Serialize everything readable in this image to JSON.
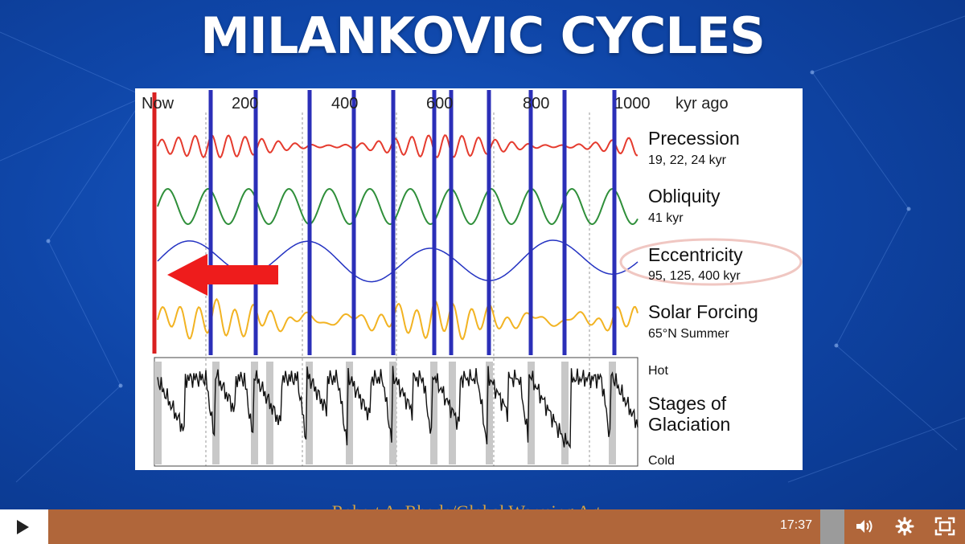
{
  "title": "MILANKOVIC CYCLES",
  "figure": {
    "axis_ticks": [
      "Now",
      "200",
      "400",
      "600",
      "800",
      "1000"
    ],
    "axis_unit": "kyr ago",
    "rows": [
      {
        "name": "Precession",
        "detail": "19, 22, 24 kyr",
        "color": "#e53b2e"
      },
      {
        "name": "Obliquity",
        "detail": "41 kyr",
        "color": "#2f8f3a"
      },
      {
        "name": "Eccentricity",
        "detail": "95, 125, 400 kyr",
        "color": "#2433c2"
      },
      {
        "name": "Solar Forcing",
        "detail": "65°N Summer",
        "color": "#f2b322"
      }
    ],
    "glaciation": {
      "name_line1": "Stages of",
      "name_line2": "Glaciation",
      "hot": "Hot",
      "cold": "Cold"
    }
  },
  "credit": "Robert A. Rhode/Global Warming Art",
  "player": {
    "time": "17:37"
  },
  "colors": {
    "accent": "#b0663a",
    "blue_markers": "#2b2fb8",
    "red_marker": "#d92020"
  },
  "icons": {
    "play": "play-icon",
    "volume": "volume-icon",
    "settings": "gear-icon",
    "fullscreen": "fullscreen-icon"
  }
}
